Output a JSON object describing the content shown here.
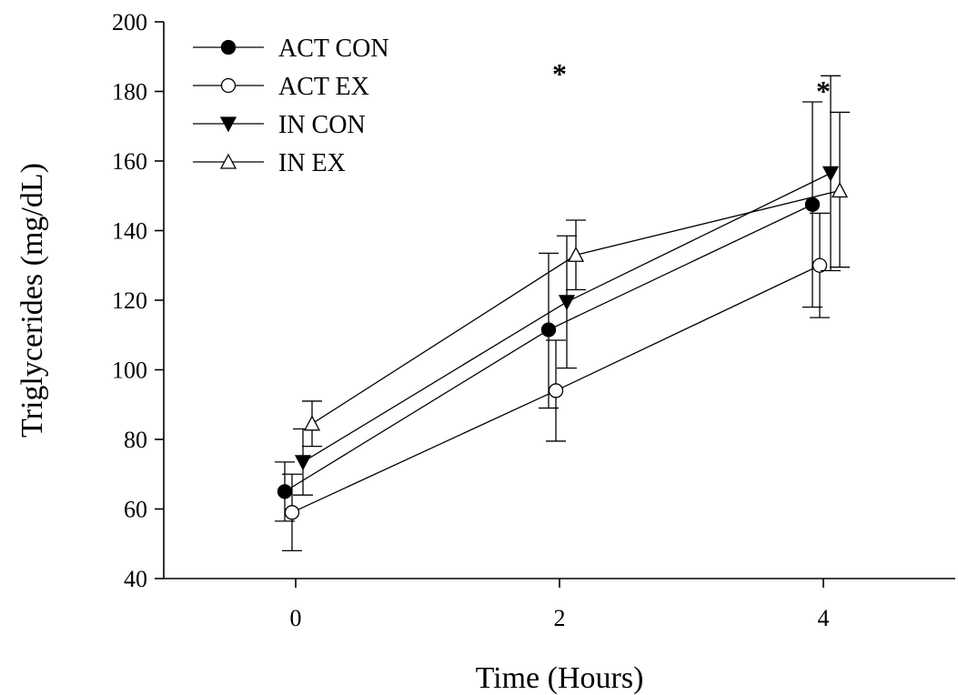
{
  "chart_data": {
    "type": "line",
    "xlabel": "Time (Hours)",
    "ylabel": "Triglycerides (mg/dL)",
    "xlim": [
      -1,
      5
    ],
    "ylim": [
      40,
      200
    ],
    "xticks": [
      0,
      2,
      4
    ],
    "yticks": [
      40,
      60,
      80,
      100,
      120,
      140,
      160,
      180,
      200
    ],
    "legend_position": "top-left",
    "grid": false,
    "series": [
      {
        "name": "ACT CON",
        "marker": "filled-circle",
        "points": [
          {
            "x": 0,
            "y": 65,
            "err_low": 56.5,
            "err_high": 73.5
          },
          {
            "x": 2,
            "y": 111.5,
            "err_low": 89,
            "err_high": 133.5
          },
          {
            "x": 4,
            "y": 147.5,
            "err_low": 118,
            "err_high": 177
          }
        ]
      },
      {
        "name": "ACT EX",
        "marker": "open-circle",
        "points": [
          {
            "x": 0,
            "y": 59,
            "err_low": 48,
            "err_high": 70
          },
          {
            "x": 2,
            "y": 94,
            "err_low": 79.5,
            "err_high": 108.5
          },
          {
            "x": 4,
            "y": 130,
            "err_low": 115,
            "err_high": 145
          }
        ]
      },
      {
        "name": "IN CON",
        "marker": "filled-triangle-down",
        "points": [
          {
            "x": 0,
            "y": 73.5,
            "err_low": 64,
            "err_high": 83
          },
          {
            "x": 2,
            "y": 119.5,
            "err_low": 100.5,
            "err_high": 138.5
          },
          {
            "x": 4,
            "y": 156.5,
            "err_low": 128.5,
            "err_high": 184.5
          }
        ]
      },
      {
        "name": "IN EX",
        "marker": "open-triangle-up",
        "points": [
          {
            "x": 0,
            "y": 84.5,
            "err_low": 78,
            "err_high": 91
          },
          {
            "x": 2,
            "y": 133,
            "err_low": 123,
            "err_high": 143
          },
          {
            "x": 4,
            "y": 151.5,
            "err_low": 129.5,
            "err_high": 174
          }
        ]
      }
    ],
    "annotations": [
      {
        "text": "*",
        "x": 2,
        "y": 188
      },
      {
        "text": "*",
        "x": 4,
        "y": 183
      }
    ]
  }
}
